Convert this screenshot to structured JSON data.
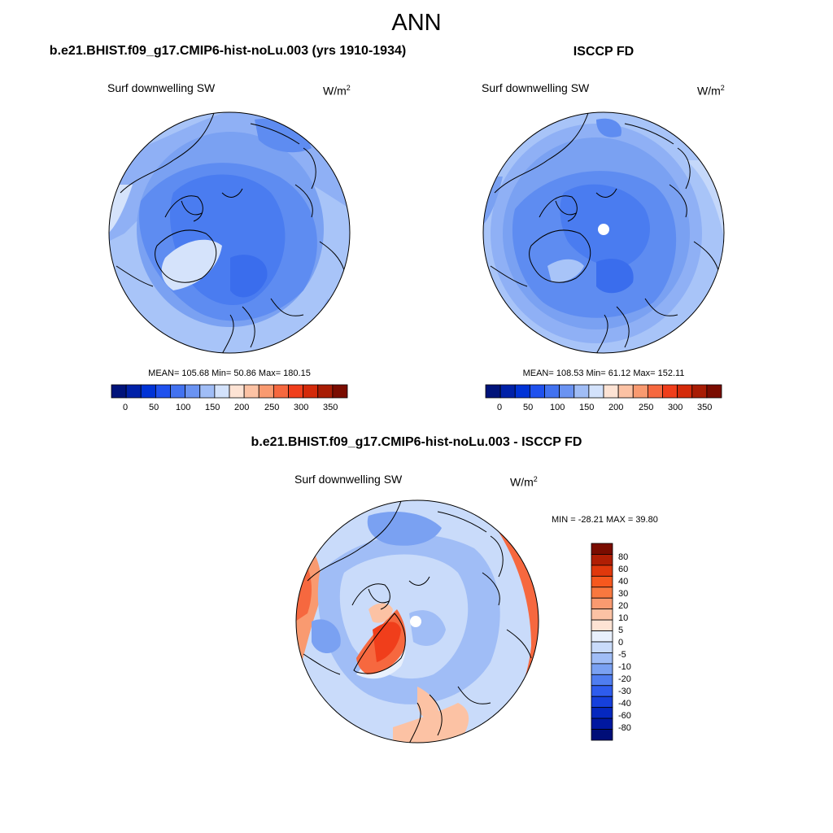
{
  "main_title": "ANN",
  "panels": [
    {
      "title": "b.e21.BHIST.f09_g17.CMIP6-hist-noLu.003 (yrs 1910-1934)",
      "variable": "Surf downwelling SW",
      "units": "W/m",
      "units_sup": "2",
      "stats": "MEAN= 105.68  Min=  50.86  Max= 180.15"
    },
    {
      "title": "ISCCP FD",
      "variable": "Surf downwelling SW",
      "units": "W/m",
      "units_sup": "2",
      "stats": "MEAN= 108.53  Min=  61.12  Max= 152.11"
    },
    {
      "title": "b.e21.BHIST.f09_g17.CMIP6-hist-noLu.003 - ISCCP FD",
      "variable": "Surf downwelling SW",
      "units": "W/m",
      "units_sup": "2",
      "stats": "MIN = -28.21 MAX =  39.80"
    }
  ],
  "colorbar_abs": {
    "colors": [
      "#00137a",
      "#0021a8",
      "#0033d6",
      "#1f51ee",
      "#4272f0",
      "#6a93f2",
      "#a0bdf6",
      "#d3e2fb",
      "#fde3d4",
      "#fcc2a4",
      "#f99a70",
      "#f6683f",
      "#f03e1b",
      "#d42a0a",
      "#a81c04",
      "#7a0c00"
    ],
    "ticks": [
      "0",
      "50",
      "100",
      "150",
      "200",
      "250",
      "300",
      "350"
    ]
  },
  "colorbar_diff": {
    "colors": [
      "#7a0c00",
      "#b01e04",
      "#e0380c",
      "#f6581e",
      "#f8783f",
      "#f99a70",
      "#fcc2a4",
      "#fde3d4",
      "#e8f0fd",
      "#c9dbfa",
      "#a0bdf6",
      "#7aa1f2",
      "#4f7df0",
      "#2e5ced",
      "#1640dc",
      "#0528bf",
      "#0018a0",
      "#000e78"
    ],
    "labels": [
      "80",
      "60",
      "40",
      "30",
      "20",
      "10",
      "5",
      "0",
      "-5",
      "-10",
      "-20",
      "-30",
      "-40",
      "-60",
      "-80"
    ]
  }
}
